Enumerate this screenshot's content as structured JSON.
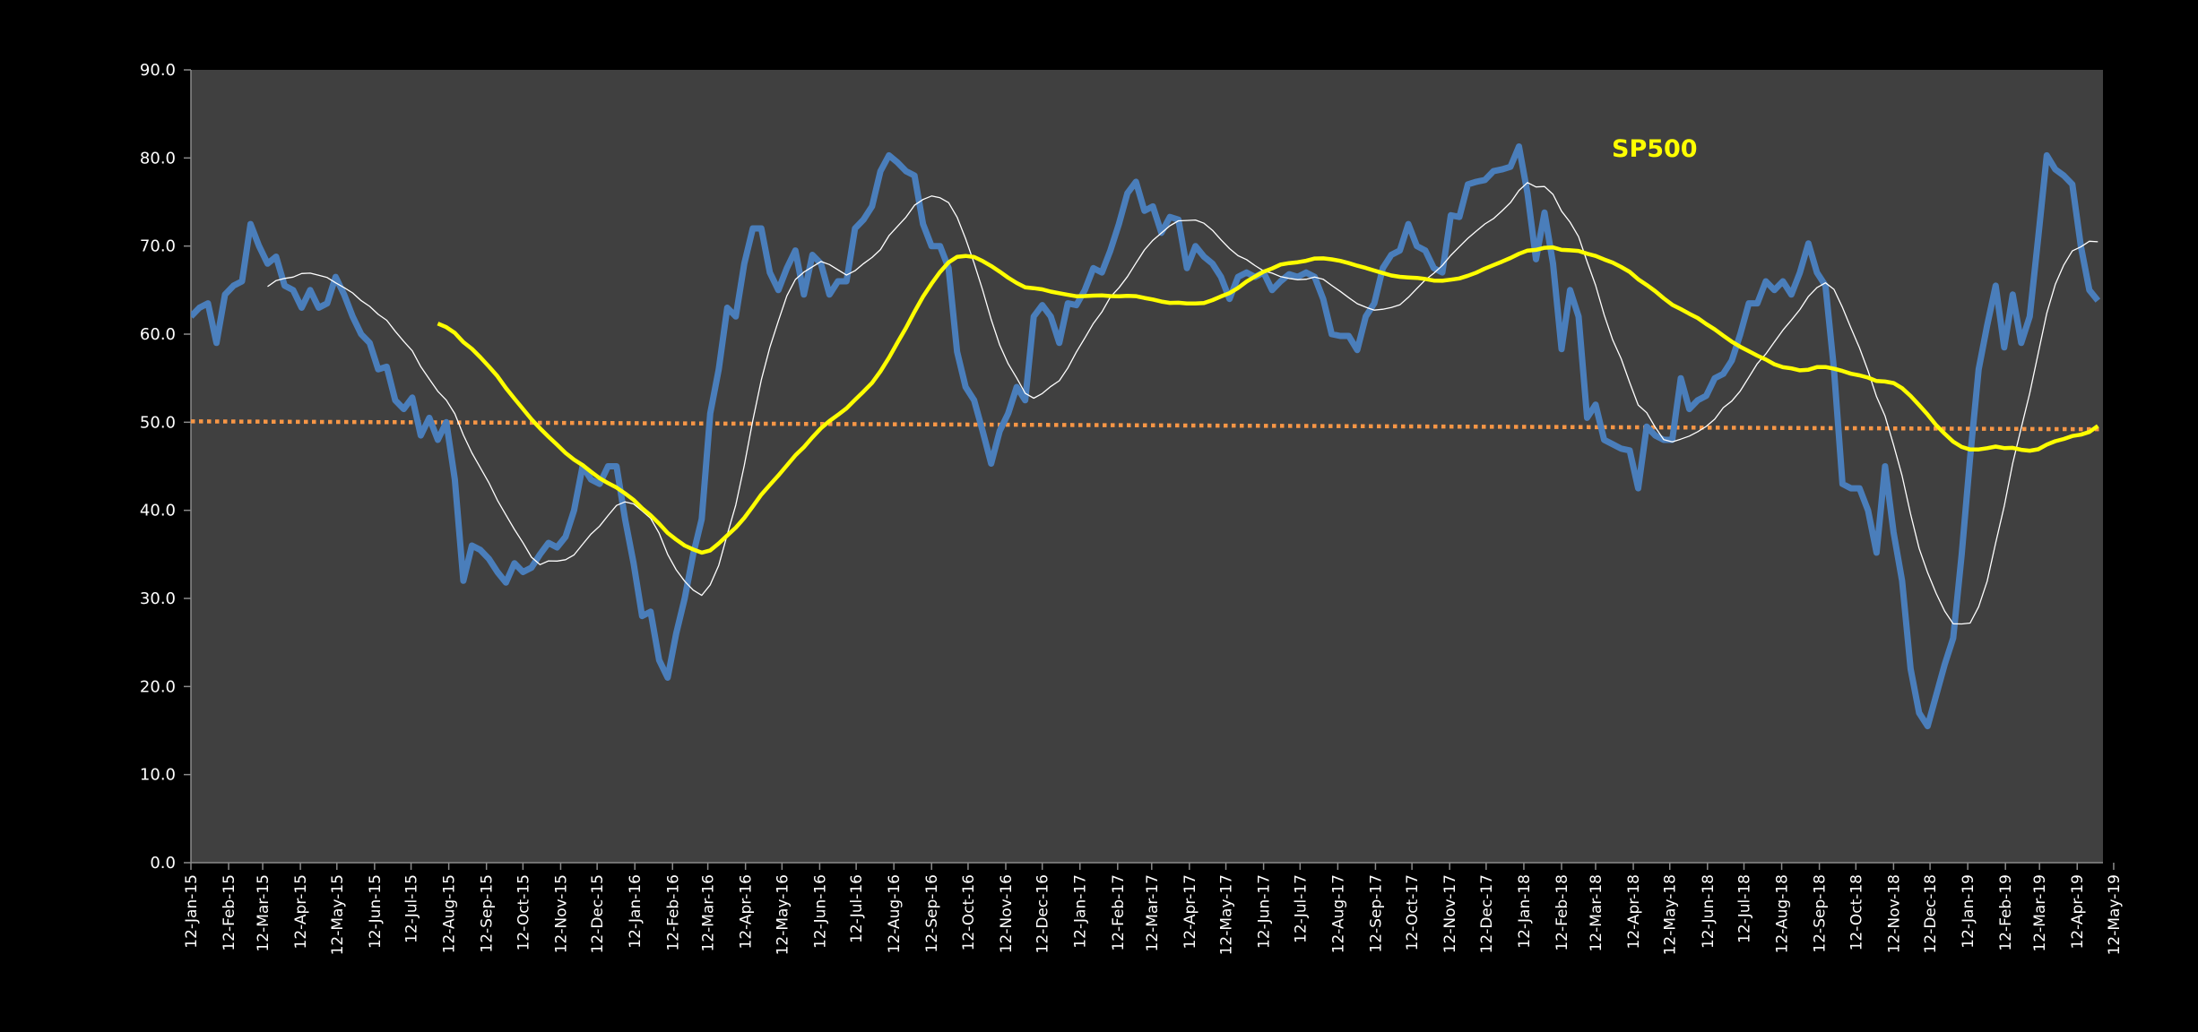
{
  "chart_data": {
    "type": "line",
    "title": "SP500",
    "xlabel": "",
    "ylabel": "",
    "ylim": [
      0,
      90
    ],
    "y_ticks": [
      "0.0",
      "10.0",
      "20.0",
      "30.0",
      "40.0",
      "50.0",
      "60.0",
      "70.0",
      "80.0",
      "90.0"
    ],
    "grid": false,
    "legend": "none",
    "x_start": "2015-01-12",
    "x_interval_days": 7,
    "x_tick_labels": [
      "12-Jan-15",
      "12-Feb-15",
      "12-Mar-15",
      "12-Apr-15",
      "12-May-15",
      "12-Jun-15",
      "12-Jul-15",
      "12-Aug-15",
      "12-Sep-15",
      "12-Oct-15",
      "12-Nov-15",
      "12-Dec-15",
      "12-Jan-16",
      "12-Feb-16",
      "12-Mar-16",
      "12-Apr-16",
      "12-May-16",
      "12-Jun-16",
      "12-Jul-16",
      "12-Aug-16",
      "12-Sep-16",
      "12-Oct-16",
      "12-Nov-16",
      "12-Dec-16",
      "12-Jan-17",
      "12-Feb-17",
      "12-Mar-17",
      "12-Apr-17",
      "12-May-17",
      "12-Jun-17",
      "12-Jul-17",
      "12-Aug-17",
      "12-Sep-17",
      "12-Oct-17",
      "12-Nov-17",
      "12-Dec-17",
      "12-Jan-18",
      "12-Feb-18",
      "12-Mar-18",
      "12-Apr-18",
      "12-May-18",
      "12-Jun-18",
      "12-Jul-18",
      "12-Aug-18",
      "12-Sep-18",
      "12-Oct-18",
      "12-Nov-18",
      "12-Dec-18",
      "12-Jan-19",
      "12-Feb-19",
      "12-Mar-19",
      "12-Apr-19",
      "12-May-19"
    ],
    "series": [
      {
        "name": "SP500",
        "color": "#4a7ebb",
        "values": [
          62,
          63,
          63.5,
          59,
          64.5,
          65.5,
          66,
          72.5,
          70,
          68,
          68.8,
          65.5,
          65,
          63,
          65,
          63,
          63.5,
          66.5,
          64.5,
          62,
          60,
          59,
          56,
          56.3,
          52.5,
          51.5,
          52.8,
          48.5,
          50.5,
          48,
          50,
          43.5,
          32,
          36,
          35.5,
          34.5,
          33,
          31.8,
          34,
          33,
          33.5,
          35,
          36.3,
          35.8,
          37,
          40,
          45,
          43.5,
          43,
          45,
          45,
          39,
          34,
          28,
          28.5,
          23,
          21,
          26,
          30,
          35,
          39,
          51,
          56,
          63,
          62,
          68,
          72,
          72,
          67,
          65,
          67.5,
          69.5,
          64.5,
          69,
          68,
          64.5,
          66,
          66,
          72,
          73,
          74.5,
          78.5,
          80.3,
          79.5,
          78.5,
          78,
          72.5,
          70,
          70,
          67.5,
          58,
          54,
          52.5,
          49,
          45.3,
          49,
          51,
          54,
          52.5,
          62,
          63.3,
          62,
          59,
          63.5,
          63.3,
          65,
          67.5,
          67,
          69.5,
          72.5,
          76,
          77.3,
          74,
          74.5,
          71.5,
          73.3,
          73,
          67.5,
          70,
          68.8,
          68,
          66.5,
          64,
          66.5,
          67,
          66.5,
          67,
          65,
          66,
          66.8,
          66.5,
          67,
          66.5,
          64,
          60,
          59.8,
          59.8,
          58.2,
          62,
          63.5,
          67.5,
          69,
          69.5,
          72.5,
          70,
          69.5,
          67.5,
          67,
          73.5,
          73.3,
          77,
          77.3,
          77.5,
          78.5,
          78.7,
          79,
          81.3,
          76,
          68.5,
          73.8,
          68,
          58.3,
          65,
          62,
          50.5,
          52,
          48,
          47.5,
          47,
          46.8,
          42.5,
          49.5,
          48.5,
          48,
          48,
          55,
          51.5,
          52.5,
          53,
          55,
          55.5,
          57,
          60,
          63.5,
          63.5,
          66,
          65,
          66,
          64.5,
          67,
          70.3,
          67,
          65.5,
          56,
          43,
          42.5,
          42.5,
          40,
          35.2,
          45,
          37.5,
          32,
          22,
          17,
          15.5,
          19,
          22.5,
          25.5,
          35,
          46,
          56,
          61,
          65.5,
          58.5,
          64.5,
          59,
          62,
          71,
          80.3,
          78.7,
          78,
          77,
          70,
          65,
          63.8
        ]
      },
      {
        "type": "moving_average",
        "source": 0,
        "window": 10,
        "color": "#ffffff"
      },
      {
        "type": "moving_average",
        "source": 0,
        "window": 30,
        "color": "#ffff00"
      }
    ],
    "trendline": {
      "type": "linear",
      "color": "#f79646",
      "start_value": 50.1,
      "end_value": 49.2
    }
  }
}
